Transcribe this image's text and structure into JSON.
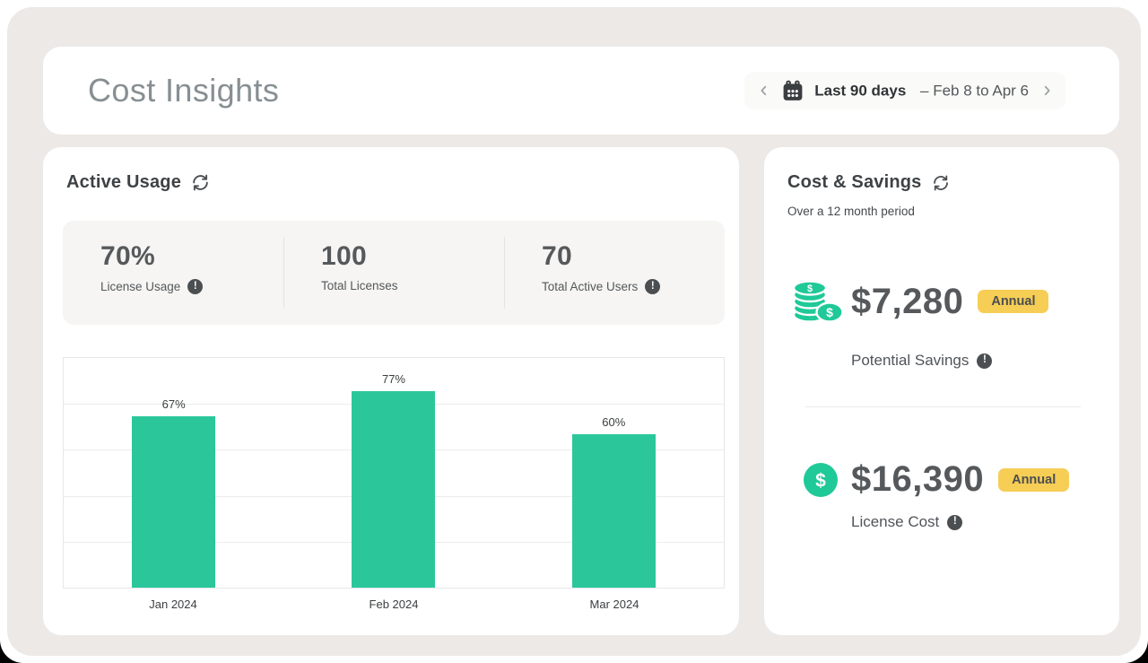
{
  "header": {
    "title": "Cost Insights",
    "date_picker": {
      "label": "Last 90 days",
      "range": " – Feb 8 to Apr 6"
    }
  },
  "active_usage": {
    "title": "Active Usage",
    "stats": [
      {
        "value": "70%",
        "label": "License Usage",
        "has_info": true
      },
      {
        "value": "100",
        "label": "Total Licenses",
        "has_info": false
      },
      {
        "value": "70",
        "label": "Total Active Users",
        "has_info": true
      }
    ]
  },
  "chart_data": {
    "type": "bar",
    "title": "Active Usage",
    "categories": [
      "Jan 2024",
      "Feb 2024",
      "Mar 2024"
    ],
    "values": [
      67,
      77,
      60
    ],
    "value_labels": [
      "67%",
      "77%",
      "60%"
    ],
    "unit": "%",
    "xlabel": "",
    "ylabel": "",
    "ylim": [
      0,
      90
    ],
    "grid": true,
    "grid_intervals": 5,
    "bar_color": "#2BC79A",
    "legend": "none"
  },
  "cost_savings": {
    "title": "Cost & Savings",
    "subtitle": "Over a 12 month period",
    "potential_savings": {
      "amount": "$7,280",
      "badge": "Annual",
      "label": "Potential Savings"
    },
    "license_cost": {
      "amount": "$16,390",
      "badge": "Annual",
      "label": "License Cost"
    }
  },
  "icons": {
    "info": "!",
    "calendar": "calendar-grid",
    "refresh": "sync-arrows",
    "chevron_left": "chevron-left",
    "chevron_right": "chevron-right",
    "coins_stack": "stacked-dollar-coins",
    "dollar_coin": "dollar-circle"
  },
  "colors": {
    "background": "#ECE9E6",
    "card": "#FFFFFF",
    "accent_green": "#2BC79A",
    "coin_green": "#1FC998",
    "badge_yellow": "#F6CE55",
    "text_dark": "#56595C",
    "text_muted": "#878F93"
  }
}
